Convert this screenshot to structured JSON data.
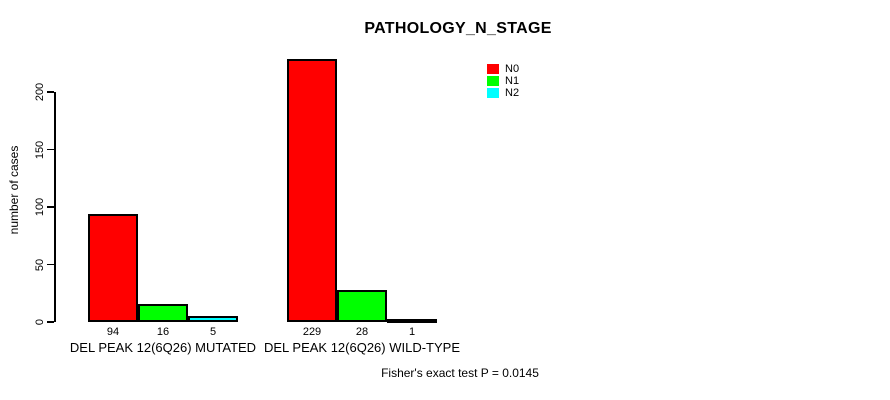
{
  "title": "PATHOLOGY_N_STAGE",
  "chart_data": {
    "type": "bar",
    "title": "PATHOLOGY_N_STAGE",
    "xlabel": "",
    "ylabel": "number of cases",
    "ylim": [
      0,
      200
    ],
    "yticks": [
      0,
      50,
      100,
      150,
      200
    ],
    "grid": false,
    "legend_position": "top-right",
    "categories": [
      "DEL PEAK 12(6Q26) MUTATED",
      "DEL PEAK 12(6Q26) WILD-TYPE"
    ],
    "series": [
      {
        "name": "N0",
        "color": "#ff0000",
        "values": [
          94,
          229
        ]
      },
      {
        "name": "N1",
        "color": "#00ff00",
        "values": [
          16,
          28
        ]
      },
      {
        "name": "N2",
        "color": "#00ffff",
        "values": [
          5,
          1
        ]
      }
    ],
    "annotation": "Fisher's exact test P = 0.0145"
  },
  "legend": {
    "items": [
      {
        "label": "N0",
        "color": "#ff0000"
      },
      {
        "label": "N1",
        "color": "#00ff00"
      },
      {
        "label": "N2",
        "color": "#00ffff"
      }
    ]
  },
  "footer": {
    "text": "Fisher's exact test P = 0.0145"
  }
}
